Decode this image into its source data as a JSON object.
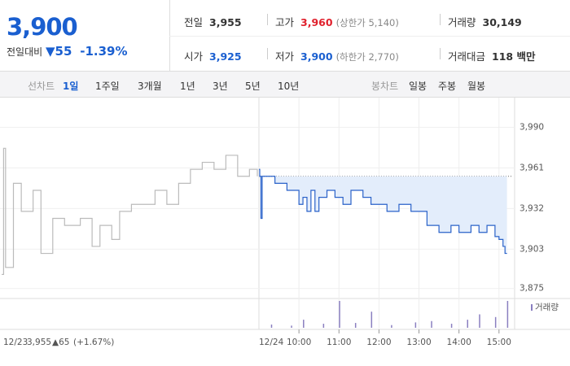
{
  "header": {
    "price": "3,900",
    "change_label": "전일대비",
    "change": "▼55",
    "change_rate": "-1.39%",
    "cells": [
      {
        "label": "전일",
        "value": "3,955"
      },
      {
        "label": "고가",
        "value": "3,960",
        "note": "(상한가 5,140)"
      },
      {
        "label": "거래량",
        "value": "30,149"
      },
      {
        "label": "시가",
        "value": "3,925"
      },
      {
        "label": "저가",
        "value": "3,900",
        "note": "(하한가 2,770)"
      },
      {
        "label": "거래대금",
        "value": "118 백만"
      }
    ]
  },
  "tabs": {
    "line_label": "선차트",
    "line": [
      "1일",
      "1주일",
      "3개월",
      "1년",
      "3년",
      "5년",
      "10년"
    ],
    "candle_label": "봉차트",
    "candle": [
      "일봉",
      "주봉",
      "월봉"
    ]
  },
  "prev_info": {
    "close": "3,955",
    "change": "▲65",
    "rate": "(+1.67%)"
  },
  "chart_data": {
    "type": "line",
    "ylim": [
      3869,
      4010
    ],
    "yticks": [
      {
        "value": 3990,
        "label": "3,990"
      },
      {
        "value": 3961,
        "label": "3,961"
      },
      {
        "value": 3932,
        "label": "3,932"
      },
      {
        "value": 3903,
        "label": "3,903"
      },
      {
        "value": 3875,
        "label": "3,875"
      }
    ],
    "base": 3955,
    "xticks": [
      {
        "value": 10,
        "label": "10:00"
      },
      {
        "value": 11,
        "label": "11:00"
      },
      {
        "value": 12,
        "label": "12:00"
      },
      {
        "value": 13,
        "label": "13:00"
      },
      {
        "value": 14,
        "label": "14:00"
      },
      {
        "value": 15,
        "label": "15:00"
      }
    ],
    "series": [
      {
        "name": "12/23",
        "color": "#bbbbbb",
        "xlim": [
          9,
          15.5
        ],
        "x": [
          9.0,
          9.05,
          9.1,
          9.3,
          9.5,
          9.8,
          10.0,
          10.3,
          10.6,
          11.0,
          11.3,
          11.5,
          11.8,
          12.0,
          12.3,
          12.6,
          12.9,
          13.2,
          13.5,
          13.8,
          14.1,
          14.4,
          14.7,
          15.0,
          15.3,
          15.5
        ],
        "values": [
          3885,
          3975,
          3890,
          3950,
          3930,
          3945,
          3900,
          3925,
          3920,
          3925,
          3905,
          3920,
          3910,
          3930,
          3935,
          3935,
          3945,
          3935,
          3950,
          3960,
          3965,
          3960,
          3970,
          3955,
          3960,
          3955
        ]
      },
      {
        "name": "12/24",
        "color": "#2a62c9",
        "xlim": [
          9,
          15.35
        ],
        "x": [
          9.0,
          9.02,
          9.05,
          9.08,
          9.3,
          9.4,
          9.6,
          9.7,
          9.9,
          10.0,
          10.1,
          10.2,
          10.3,
          10.4,
          10.5,
          10.7,
          10.9,
          11.1,
          11.3,
          11.6,
          11.8,
          12.0,
          12.2,
          12.5,
          12.8,
          13.0,
          13.2,
          13.5,
          13.8,
          14.0,
          14.3,
          14.5,
          14.7,
          14.9,
          15.0,
          15.1,
          15.15,
          15.2
        ],
        "values": [
          3960,
          3955,
          3925,
          3955,
          3955,
          3950,
          3950,
          3945,
          3945,
          3935,
          3940,
          3930,
          3945,
          3930,
          3940,
          3945,
          3940,
          3935,
          3945,
          3940,
          3935,
          3935,
          3930,
          3935,
          3930,
          3930,
          3920,
          3915,
          3920,
          3915,
          3920,
          3915,
          3920,
          3912,
          3910,
          3905,
          3900,
          3900
        ]
      }
    ],
    "volume": {
      "name": "거래량",
      "color": "#8a7fc0",
      "ylim": [
        0,
        100
      ],
      "x": [
        9.3,
        9.8,
        10.1,
        10.6,
        11.0,
        11.4,
        11.8,
        12.3,
        12.9,
        13.3,
        13.8,
        14.2,
        14.5,
        14.9,
        15.2
      ],
      "values": [
        12,
        8,
        30,
        15,
        100,
        18,
        60,
        10,
        20,
        25,
        15,
        30,
        50,
        40,
        100
      ]
    }
  }
}
